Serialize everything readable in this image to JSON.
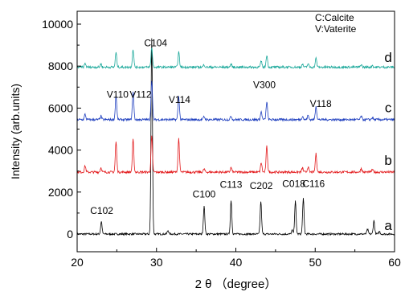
{
  "chart_data": {
    "type": "line",
    "title": "",
    "xlabel": "2 θ （degree）",
    "ylabel": "Intensity (arb.units)",
    "xlim": [
      20,
      60
    ],
    "ylim": [
      -800,
      10000
    ],
    "x_ticks": [
      20,
      30,
      40,
      50,
      60
    ],
    "y_ticks": [
      0,
      2000,
      4000,
      6000,
      8000,
      10000
    ],
    "grid": false,
    "legend_text": [
      "C:Calcite",
      "V:Vaterite"
    ],
    "series": [
      {
        "name": "a",
        "color": "#000000",
        "baseline": 0,
        "noise": 45,
        "peaks": [
          [
            23.05,
            600
          ],
          [
            29.4,
            9300
          ],
          [
            31.45,
            170
          ],
          [
            36.0,
            1320
          ],
          [
            39.4,
            1620
          ],
          [
            43.15,
            1560
          ],
          [
            47.1,
            170
          ],
          [
            47.5,
            1560
          ],
          [
            48.5,
            1700
          ],
          [
            56.6,
            220
          ],
          [
            57.4,
            640
          ],
          [
            58.1,
            120
          ]
        ]
      },
      {
        "name": "b",
        "color": "#e31a1c",
        "baseline": 2950,
        "noise": 55,
        "peaks": [
          [
            21.0,
            300
          ],
          [
            23.0,
            220
          ],
          [
            24.9,
            1450
          ],
          [
            27.05,
            1550
          ],
          [
            29.4,
            1700
          ],
          [
            32.8,
            1600
          ],
          [
            36.0,
            150
          ],
          [
            39.4,
            220
          ],
          [
            43.2,
            450
          ],
          [
            43.9,
            1230
          ],
          [
            48.4,
            200
          ],
          [
            49.1,
            250
          ],
          [
            50.1,
            870
          ],
          [
            55.8,
            180
          ],
          [
            57.2,
            120
          ]
        ]
      },
      {
        "name": "c",
        "color": "#1f3fbf",
        "baseline": 5450,
        "noise": 55,
        "peaks": [
          [
            21.0,
            250
          ],
          [
            23.0,
            170
          ],
          [
            24.9,
            1150
          ],
          [
            27.05,
            1350
          ],
          [
            29.4,
            1900
          ],
          [
            32.8,
            1100
          ],
          [
            36.0,
            150
          ],
          [
            39.4,
            180
          ],
          [
            43.2,
            380
          ],
          [
            43.9,
            850
          ],
          [
            48.4,
            170
          ],
          [
            49.1,
            200
          ],
          [
            50.1,
            650
          ],
          [
            55.8,
            160
          ],
          [
            57.2,
            100
          ]
        ]
      },
      {
        "name": "d",
        "color": "#1aa89a",
        "baseline": 7950,
        "noise": 55,
        "peaks": [
          [
            21.0,
            180
          ],
          [
            23.0,
            150
          ],
          [
            24.9,
            700
          ],
          [
            27.05,
            850
          ],
          [
            29.4,
            950
          ],
          [
            32.8,
            720
          ],
          [
            36.0,
            120
          ],
          [
            39.4,
            140
          ],
          [
            43.2,
            280
          ],
          [
            43.9,
            580
          ],
          [
            48.4,
            140
          ],
          [
            49.1,
            160
          ],
          [
            50.1,
            420
          ],
          [
            55.8,
            130
          ],
          [
            57.2,
            90
          ]
        ]
      }
    ],
    "curve_labels": [
      {
        "text": "a",
        "x": 59.2,
        "y": 200
      },
      {
        "text": "b",
        "x": 59.2,
        "y": 3300
      },
      {
        "text": "c",
        "x": 59.2,
        "y": 5800
      },
      {
        "text": "d",
        "x": 59.2,
        "y": 8200
      }
    ],
    "annotations": [
      {
        "text": "C102",
        "x": 23.1,
        "y": 950
      },
      {
        "text": "C100",
        "x": 36.0,
        "y": 1750
      },
      {
        "text": "C113",
        "x": 39.4,
        "y": 2200
      },
      {
        "text": "C202",
        "x": 43.2,
        "y": 2150
      },
      {
        "text": "C018",
        "x": 47.3,
        "y": 2250
      },
      {
        "text": "C116",
        "x": 49.8,
        "y": 2250
      },
      {
        "text": "V110",
        "x": 25.1,
        "y": 6500
      },
      {
        "text": "V112",
        "x": 28.0,
        "y": 6500
      },
      {
        "text": "C104",
        "x": 29.9,
        "y": 8950
      },
      {
        "text": "V114",
        "x": 32.9,
        "y": 6250
      },
      {
        "text": "V300",
        "x": 43.6,
        "y": 6950
      },
      {
        "text": "V118",
        "x": 50.7,
        "y": 6050
      }
    ]
  }
}
